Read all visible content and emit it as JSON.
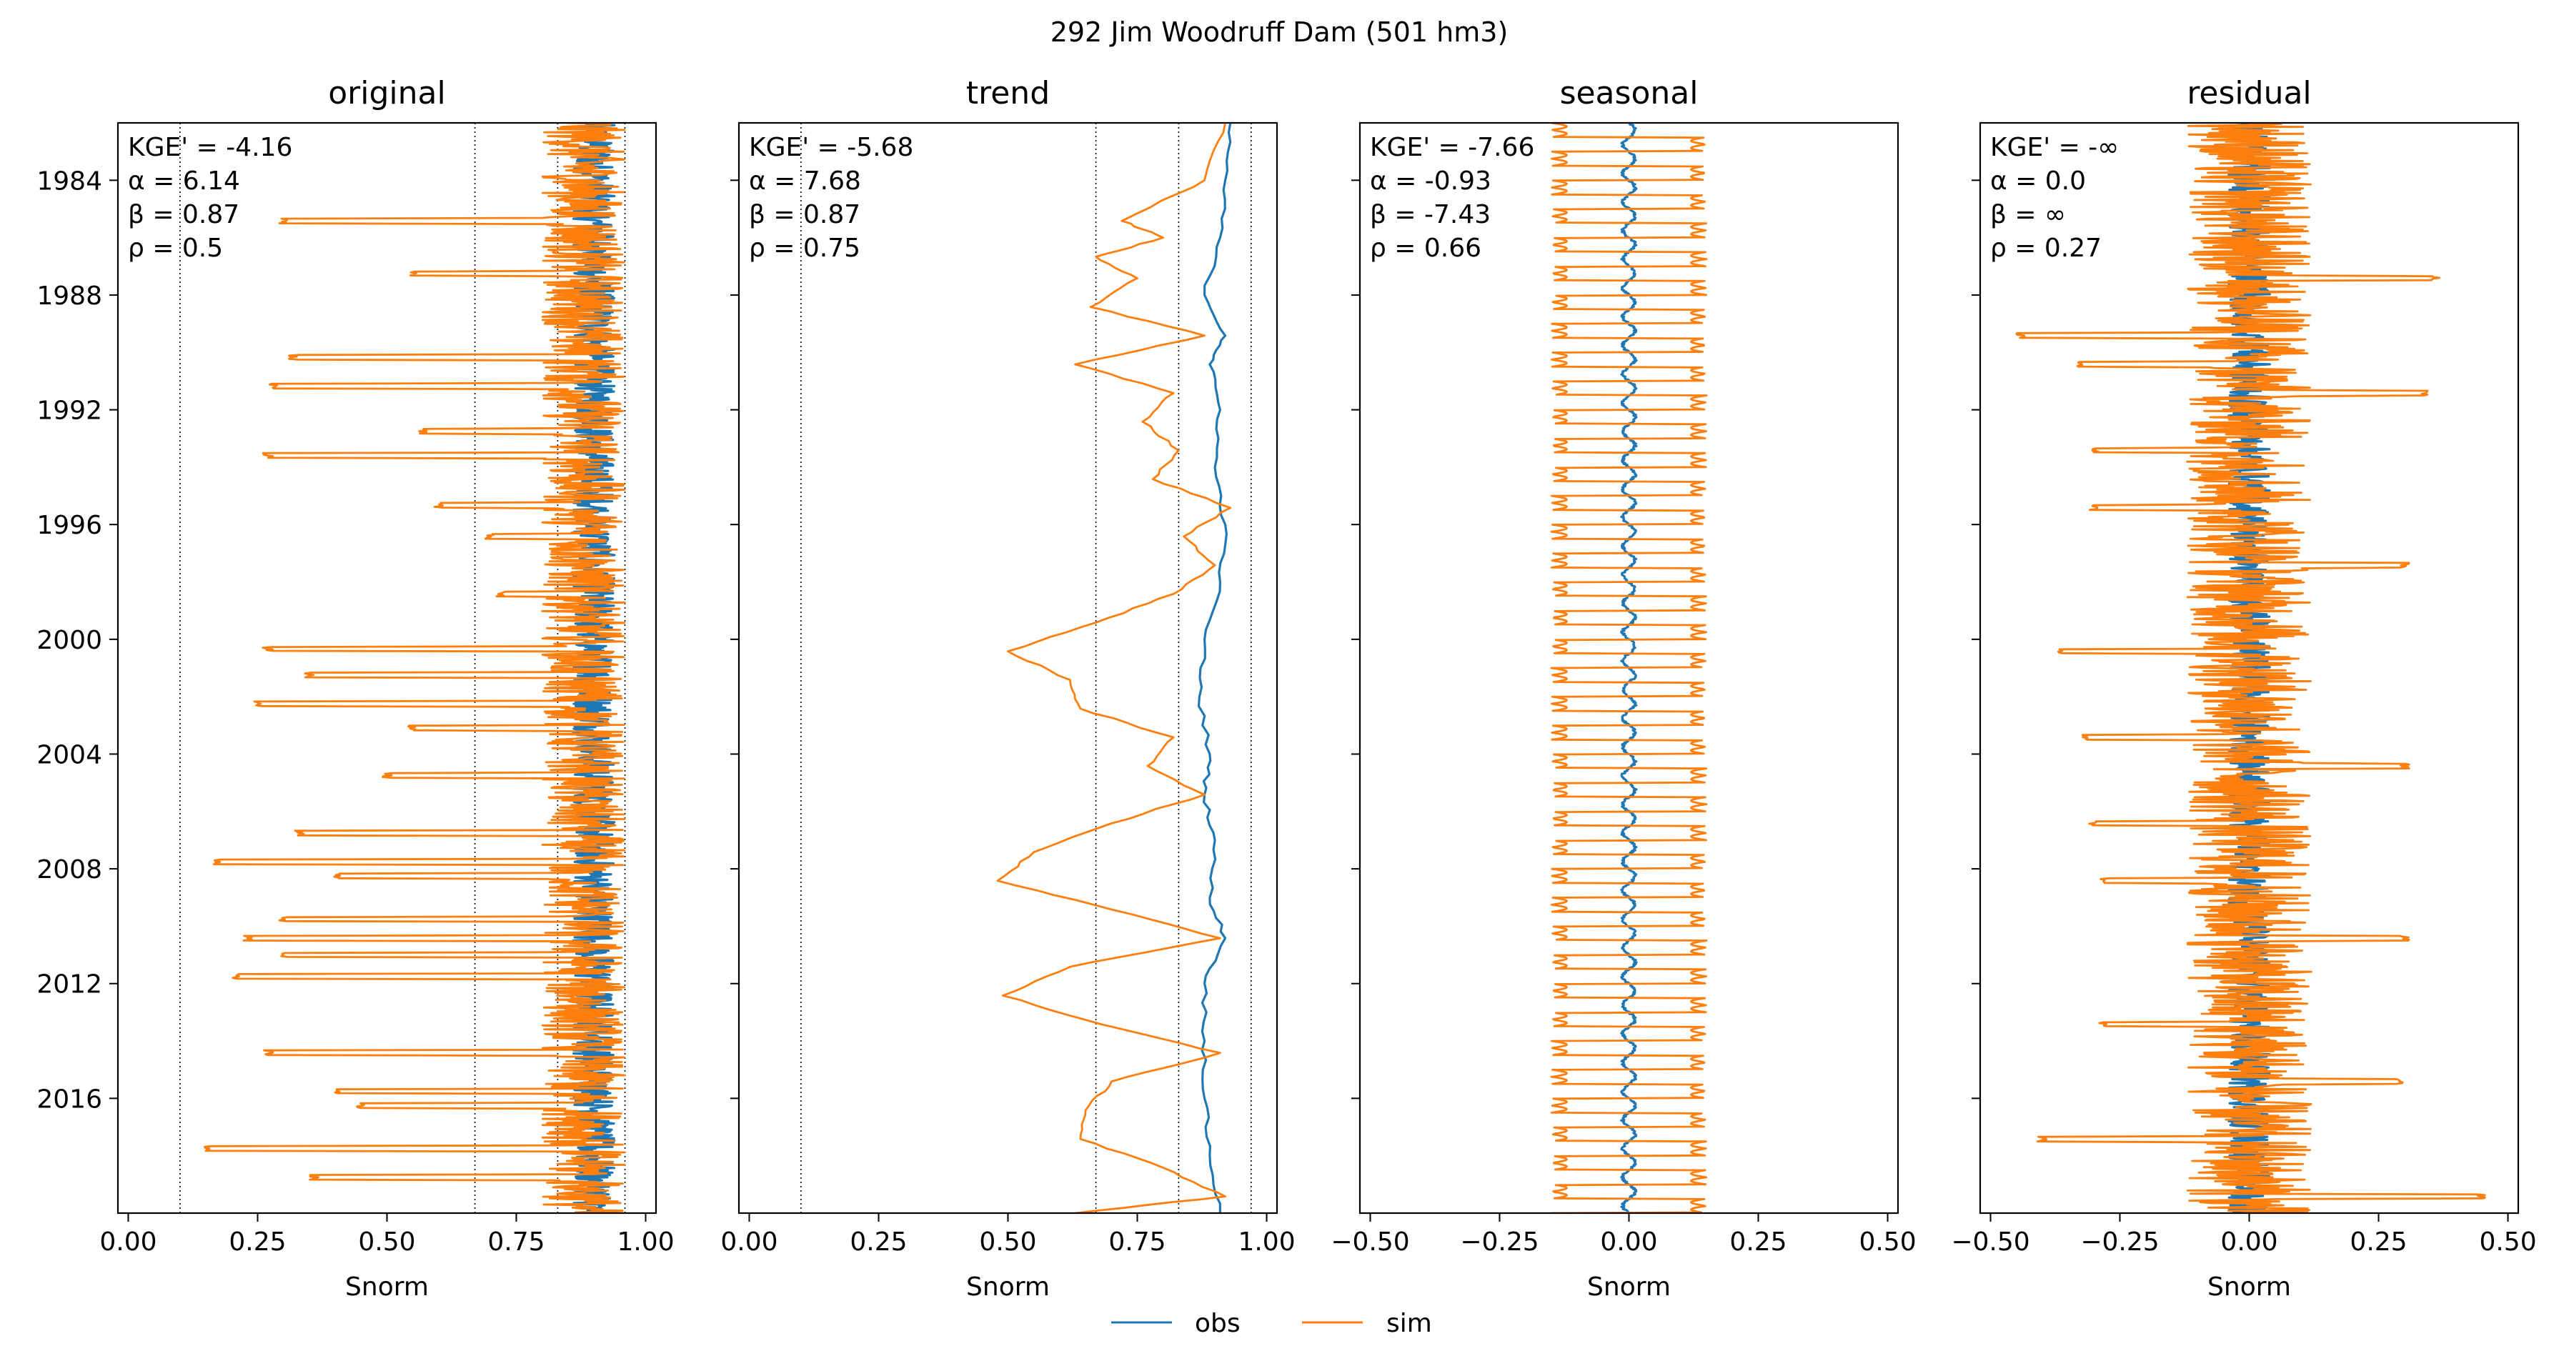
{
  "figure": {
    "suptitle": "292  Jim Woodruff Dam (501 hm3)",
    "legend": [
      {
        "label": "obs",
        "color": "#1f77b4"
      },
      {
        "label": "sim",
        "color": "#ff7f0e"
      }
    ]
  },
  "chart_data": [
    {
      "type": "line",
      "title": "original",
      "xlabel": "Snorm",
      "ylabel": "",
      "xlim": [
        -0.02,
        1.02
      ],
      "ylim": [
        "2020-01-01",
        "1982-01-01"
      ],
      "xticks": [
        "0.00",
        "0.25",
        "0.50",
        "0.75",
        "1.00"
      ],
      "yticks": [
        "1984",
        "1988",
        "1992",
        "1996",
        "2000",
        "2004",
        "2008",
        "2012",
        "2016"
      ],
      "vlines": [
        0.1,
        0.67,
        0.83,
        0.96
      ],
      "annotation": [
        "KGE' = -4.16",
        "α = 6.14",
        "β = 0.87",
        "ρ = 0.5"
      ],
      "series": [
        {
          "name": "obs",
          "color": "#1f77b4",
          "center": 0.9,
          "amp": 0.04
        },
        {
          "name": "sim",
          "color": "#ff7f0e",
          "center": 0.88,
          "amp": 0.08,
          "spikes": [
            {
              "date": "1985-06-01",
              "x": 0.3
            },
            {
              "date": "1987-04-01",
              "x": 0.55
            },
            {
              "date": "1990-03-01",
              "x": 0.32
            },
            {
              "date": "1991-03-01",
              "x": 0.28
            },
            {
              "date": "1992-10-01",
              "x": 0.57
            },
            {
              "date": "1993-08-01",
              "x": 0.27
            },
            {
              "date": "1995-05-01",
              "x": 0.6
            },
            {
              "date": "1996-06-01",
              "x": 0.7
            },
            {
              "date": "1998-06-01",
              "x": 0.72
            },
            {
              "date": "2000-05-01",
              "x": 0.27
            },
            {
              "date": "2001-04-01",
              "x": 0.35
            },
            {
              "date": "2002-04-01",
              "x": 0.25
            },
            {
              "date": "2003-02-01",
              "x": 0.55
            },
            {
              "date": "2004-10-01",
              "x": 0.5
            },
            {
              "date": "2006-10-01",
              "x": 0.33
            },
            {
              "date": "2007-10-01",
              "x": 0.17
            },
            {
              "date": "2008-04-01",
              "x": 0.4
            },
            {
              "date": "2009-10-01",
              "x": 0.3
            },
            {
              "date": "2010-06-01",
              "x": 0.23
            },
            {
              "date": "2011-01-01",
              "x": 0.3
            },
            {
              "date": "2011-10-01",
              "x": 0.21
            },
            {
              "date": "2014-06-01",
              "x": 0.27
            },
            {
              "date": "2015-10-01",
              "x": 0.4
            },
            {
              "date": "2016-04-01",
              "x": 0.45
            },
            {
              "date": "2017-10-01",
              "x": 0.15
            },
            {
              "date": "2018-10-01",
              "x": 0.36
            }
          ]
        }
      ]
    },
    {
      "type": "line",
      "title": "trend",
      "xlabel": "Snorm",
      "ylabel": "",
      "xlim": [
        -0.02,
        1.02
      ],
      "ylim": [
        "2020-01-01",
        "1982-01-01"
      ],
      "xticks": [
        "0.00",
        "0.25",
        "0.50",
        "0.75",
        "1.00"
      ],
      "yticks": [],
      "vlines": [
        0.1,
        0.67,
        0.83,
        0.97
      ],
      "annotation": [
        "KGE' = -5.68",
        "α = 7.68",
        "β = 0.87",
        "ρ = 0.75"
      ],
      "series": [
        {
          "name": "obs",
          "color": "#1f77b4",
          "points": [
            [
              "1982-01-01",
              0.93
            ],
            [
              "1984-01-01",
              0.92
            ],
            [
              "1986-01-01",
              0.91
            ],
            [
              "1988-01-01",
              0.88
            ],
            [
              "1989-06-01",
              0.92
            ],
            [
              "1990-06-01",
              0.89
            ],
            [
              "1992-01-01",
              0.91
            ],
            [
              "1994-01-01",
              0.9
            ],
            [
              "1996-01-01",
              0.92
            ],
            [
              "1998-01-01",
              0.91
            ],
            [
              "2000-01-01",
              0.88
            ],
            [
              "2002-01-01",
              0.87
            ],
            [
              "2004-01-01",
              0.89
            ],
            [
              "2005-06-01",
              0.88
            ],
            [
              "2007-01-01",
              0.9
            ],
            [
              "2009-01-01",
              0.89
            ],
            [
              "2010-06-01",
              0.92
            ],
            [
              "2012-01-01",
              0.88
            ],
            [
              "2014-01-01",
              0.88
            ],
            [
              "2016-01-01",
              0.88
            ],
            [
              "2018-01-01",
              0.89
            ],
            [
              "2020-01-01",
              0.91
            ]
          ]
        },
        {
          "name": "sim",
          "color": "#ff7f0e",
          "points": [
            [
              "1982-01-01",
              0.92
            ],
            [
              "1984-01-01",
              0.88
            ],
            [
              "1985-06-01",
              0.72
            ],
            [
              "1986-01-01",
              0.8
            ],
            [
              "1986-09-01",
              0.67
            ],
            [
              "1987-06-01",
              0.75
            ],
            [
              "1988-06-01",
              0.66
            ],
            [
              "1989-06-01",
              0.88
            ],
            [
              "1990-06-01",
              0.63
            ],
            [
              "1991-06-01",
              0.82
            ],
            [
              "1992-06-01",
              0.76
            ],
            [
              "1993-06-01",
              0.83
            ],
            [
              "1994-06-01",
              0.78
            ],
            [
              "1995-06-01",
              0.93
            ],
            [
              "1996-06-01",
              0.84
            ],
            [
              "1997-06-01",
              0.9
            ],
            [
              "1998-06-01",
              0.82
            ],
            [
              "1999-06-01",
              0.67
            ],
            [
              "2000-06-01",
              0.5
            ],
            [
              "2001-06-01",
              0.62
            ],
            [
              "2002-06-01",
              0.64
            ],
            [
              "2003-06-01",
              0.82
            ],
            [
              "2004-06-01",
              0.77
            ],
            [
              "2005-06-01",
              0.88
            ],
            [
              "2006-06-01",
              0.7
            ],
            [
              "2007-06-01",
              0.55
            ],
            [
              "2008-06-01",
              0.48
            ],
            [
              "2009-06-01",
              0.7
            ],
            [
              "2010-06-01",
              0.91
            ],
            [
              "2011-06-01",
              0.62
            ],
            [
              "2012-06-01",
              0.49
            ],
            [
              "2013-06-01",
              0.68
            ],
            [
              "2014-06-01",
              0.91
            ],
            [
              "2015-06-01",
              0.7
            ],
            [
              "2016-06-01",
              0.65
            ],
            [
              "2017-06-01",
              0.64
            ],
            [
              "2018-06-01",
              0.8
            ],
            [
              "2019-06-01",
              0.92
            ],
            [
              "2020-01-01",
              0.63
            ]
          ]
        }
      ]
    },
    {
      "type": "line",
      "title": "seasonal",
      "xlabel": "Snorm",
      "ylabel": "",
      "xlim": [
        -0.52,
        0.52
      ],
      "ylim": [
        "2020-01-01",
        "1982-01-01"
      ],
      "xticks": [
        "−0.50",
        "−0.25",
        "0.00",
        "0.25",
        "0.50"
      ],
      "yticks": [],
      "vlines": [],
      "annotation": [
        "KGE' = -7.66",
        "α = -0.93",
        "β = -7.43",
        "ρ = 0.66"
      ],
      "series": [
        {
          "name": "obs",
          "color": "#1f77b4",
          "center": 0.0,
          "amp": 0.012
        },
        {
          "name": "sim",
          "color": "#ff7f0e",
          "center": 0.0,
          "amp": 0.15
        }
      ]
    },
    {
      "type": "line",
      "title": "residual",
      "xlabel": "Snorm",
      "ylabel": "",
      "xlim": [
        -0.52,
        0.52
      ],
      "ylim": [
        "2020-01-01",
        "1982-01-01"
      ],
      "xticks": [
        "−0.50",
        "−0.25",
        "0.00",
        "0.25",
        "0.50"
      ],
      "yticks": [],
      "vlines": [],
      "annotation": [
        "KGE' = -∞",
        "α = 0.0",
        "β = ∞",
        "ρ = 0.27"
      ],
      "series": [
        {
          "name": "obs",
          "color": "#1f77b4",
          "center": 0.0,
          "amp": 0.04
        },
        {
          "name": "sim",
          "color": "#ff7f0e",
          "center": 0.0,
          "amp": 0.12,
          "spikes": [
            {
              "date": "1987-06-01",
              "x": 0.36
            },
            {
              "date": "1989-06-01",
              "x": -0.44
            },
            {
              "date": "1990-06-01",
              "x": -0.33
            },
            {
              "date": "1991-06-01",
              "x": 0.34
            },
            {
              "date": "1993-06-01",
              "x": -0.3
            },
            {
              "date": "1995-06-01",
              "x": -0.3
            },
            {
              "date": "1997-06-01",
              "x": 0.3
            },
            {
              "date": "2000-06-01",
              "x": -0.36
            },
            {
              "date": "2003-06-01",
              "x": -0.32
            },
            {
              "date": "2004-06-01",
              "x": 0.3
            },
            {
              "date": "2006-06-01",
              "x": -0.3
            },
            {
              "date": "2008-06-01",
              "x": -0.28
            },
            {
              "date": "2010-06-01",
              "x": 0.3
            },
            {
              "date": "2013-06-01",
              "x": -0.28
            },
            {
              "date": "2015-06-01",
              "x": 0.29
            },
            {
              "date": "2017-06-01",
              "x": -0.4
            },
            {
              "date": "2019-06-01",
              "x": 0.45
            }
          ]
        }
      ]
    }
  ]
}
